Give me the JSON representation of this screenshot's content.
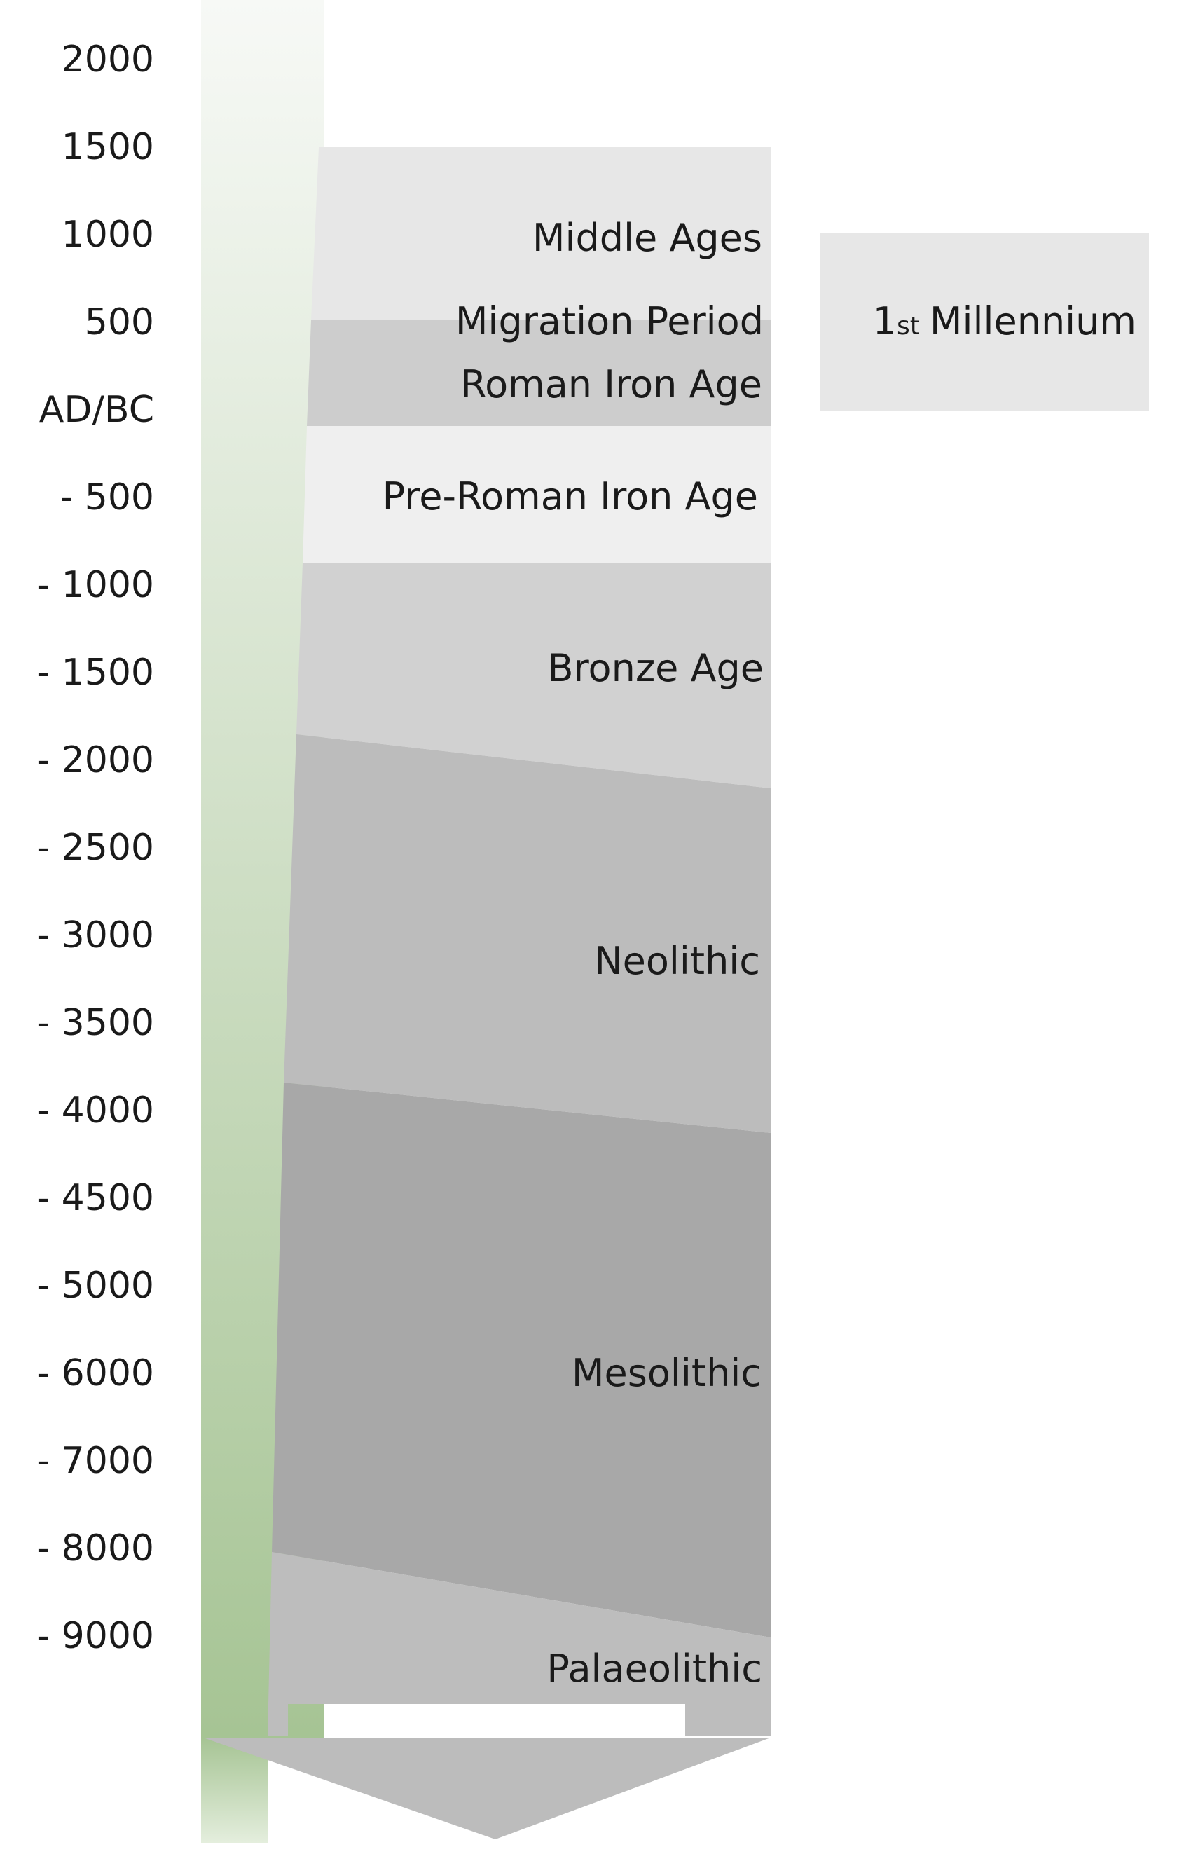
{
  "timeline": {
    "ticks": [
      "2000",
      "1500",
      "1000",
      "500",
      "AD/BC",
      "- 500",
      "- 1000",
      "- 1500",
      "- 2000",
      "- 2500",
      "- 3000",
      "- 3500",
      "- 4000",
      "- 4500",
      "- 5000",
      "- 6000",
      "- 7000",
      "- 8000",
      "- 9000"
    ],
    "colors": {
      "green_top": "#f7f9f6",
      "green_bottom": "#a6c494"
    }
  },
  "periods": [
    {
      "label": "Middle Ages",
      "color": "#e7e7e7"
    },
    {
      "label": "Migration Period",
      "color": "#cdcdcd"
    },
    {
      "label": "Roman Iron Age",
      "color": "#cdcdcd"
    },
    {
      "label": "Pre-Roman Iron Age",
      "color": "#efefef"
    },
    {
      "label": "Bronze Age",
      "color": "#d1d1d1"
    },
    {
      "label": "Neolithic",
      "color": "#bcbcbc"
    },
    {
      "label": "Mesolithic",
      "color": "#a8a8a8"
    },
    {
      "label": "Palaeolithic",
      "color": "#bdbdbd"
    }
  ],
  "millennium": {
    "number": "1",
    "suffix": "st",
    "text": "Millennium",
    "color": "#e7e7e7"
  },
  "arrow": {
    "color": "#bcbcbc"
  }
}
